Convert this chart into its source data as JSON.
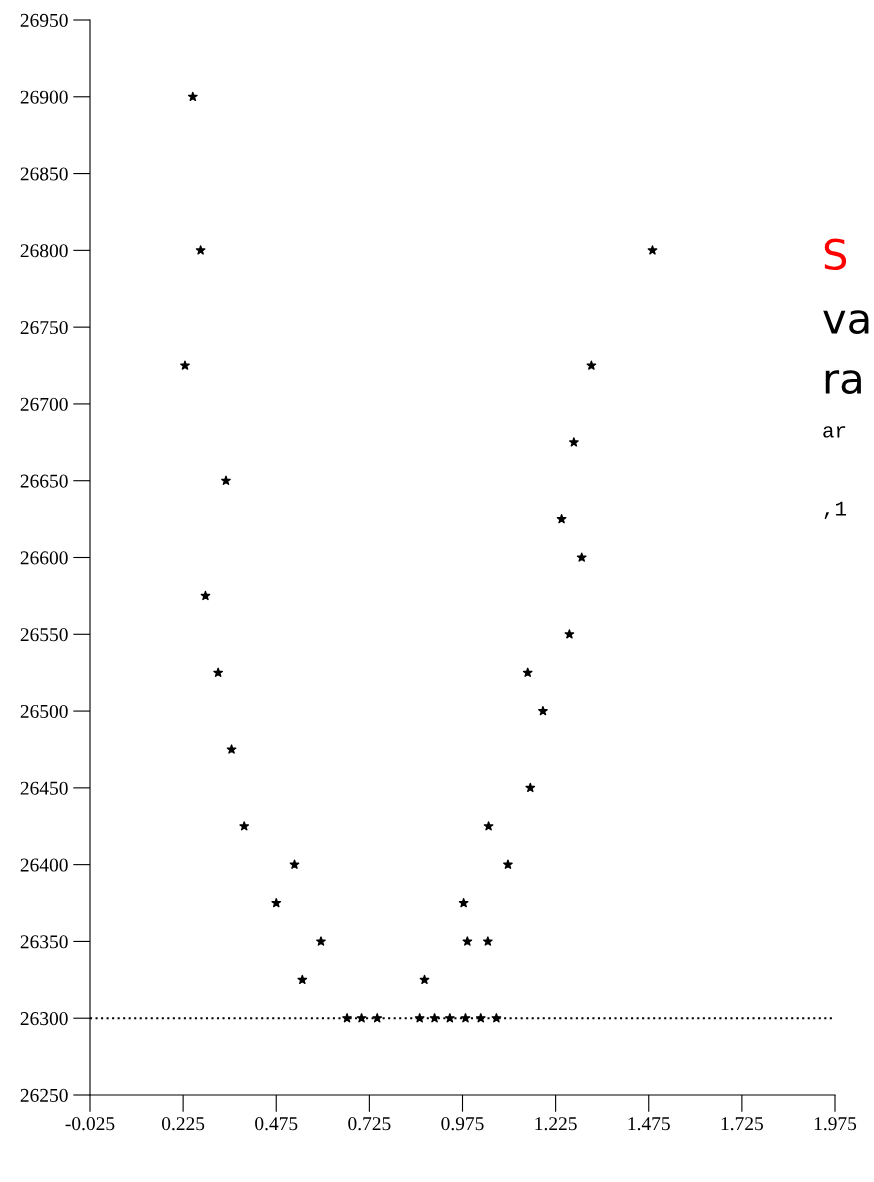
{
  "chart_data": {
    "type": "scatter",
    "marker": "star",
    "grid": false,
    "legend": false,
    "x": [
      0.251,
      0.272,
      1.485,
      0.23,
      1.321,
      1.274,
      0.34,
      1.241,
      1.295,
      0.285,
      1.262,
      0.319,
      1.15,
      1.191,
      0.355,
      1.157,
      0.389,
      1.045,
      0.524,
      1.097,
      0.475,
      0.978,
      0.595,
      0.988,
      1.043,
      0.545,
      0.873,
      0.665,
      0.704,
      0.746,
      0.86,
      0.9,
      0.941,
      0.983,
      1.024,
      1.066
    ],
    "series": [
      {
        "color": "#000000",
        "values": [
          26900,
          26800,
          26800,
          26725,
          26725,
          26675,
          26650,
          26625,
          26600,
          26575,
          26550,
          26525,
          26525,
          26500,
          26475,
          26450,
          26425,
          26425,
          26400,
          26400,
          26375,
          26375,
          26350,
          26350,
          26350,
          26325,
          26325,
          26300,
          26300,
          26300,
          26300,
          26300,
          26300,
          26300,
          26300,
          26300
        ]
      }
    ],
    "xlim": [
      -0.025,
      1.975
    ],
    "xticks": [
      -0.025,
      0.225,
      0.475,
      0.725,
      0.975,
      1.225,
      1.475,
      1.725,
      1.975
    ],
    "ylim": [
      26250,
      26950
    ],
    "yticks": [
      26250,
      26300,
      26350,
      26400,
      26450,
      26500,
      26550,
      26600,
      26650,
      26700,
      26750,
      26800,
      26850,
      26900,
      26950
    ],
    "ref_lines": [
      {
        "axis": "y",
        "value": 26300,
        "line_style": "dotted",
        "color": "#000000"
      }
    ],
    "annotations": [
      "S",
      "va",
      "ra",
      "ar",
      ",1"
    ]
  }
}
